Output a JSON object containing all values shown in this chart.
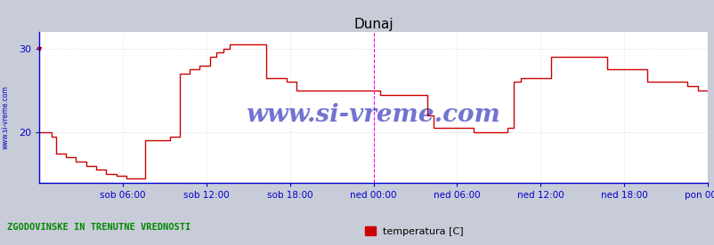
{
  "title": "Dunaj",
  "bg_color": "#c8ccd8",
  "plot_bg_color": "#ffffff",
  "grid_color_h": "#d0d0e0",
  "grid_color_v": "#ffcccc",
  "line_color": "#cc0000",
  "axis_color": "#0000cc",
  "text_color": "#0000cc",
  "watermark": "www.si-vreme.com",
  "watermark_color": "#0000aa",
  "legend_label": "temperatura [C]",
  "legend_color": "#cc0000",
  "bottom_label": "ZGODOVINSKE IN TRENUTNE VREDNOSTI",
  "ylim_min": 14.0,
  "ylim_max": 32.0,
  "yticks": [
    20,
    30
  ],
  "xticklabels": [
    "sob 06:00",
    "sob 12:00",
    "sob 18:00",
    "ned 00:00",
    "ned 06:00",
    "ned 12:00",
    "ned 18:00",
    "pon 00:00"
  ],
  "xtick_positions": [
    0.125,
    0.25,
    0.375,
    0.5,
    0.625,
    0.75,
    0.875,
    1.0
  ],
  "magenta_vlines": [
    0.5,
    1.0
  ],
  "temp_data": [
    [
      0.0,
      20.0
    ],
    [
      0.01,
      20.0
    ],
    [
      0.018,
      19.5
    ],
    [
      0.025,
      17.5
    ],
    [
      0.04,
      17.0
    ],
    [
      0.055,
      16.5
    ],
    [
      0.07,
      16.0
    ],
    [
      0.085,
      15.5
    ],
    [
      0.1,
      15.0
    ],
    [
      0.115,
      14.8
    ],
    [
      0.13,
      14.5
    ],
    [
      0.145,
      14.5
    ],
    [
      0.158,
      19.0
    ],
    [
      0.175,
      19.0
    ],
    [
      0.195,
      19.5
    ],
    [
      0.21,
      27.0
    ],
    [
      0.225,
      27.5
    ],
    [
      0.24,
      28.0
    ],
    [
      0.255,
      29.0
    ],
    [
      0.265,
      29.5
    ],
    [
      0.275,
      30.0
    ],
    [
      0.285,
      30.5
    ],
    [
      0.3,
      30.5
    ],
    [
      0.315,
      30.5
    ],
    [
      0.33,
      30.5
    ],
    [
      0.34,
      26.5
    ],
    [
      0.355,
      26.5
    ],
    [
      0.37,
      26.0
    ],
    [
      0.385,
      25.0
    ],
    [
      0.4,
      25.0
    ],
    [
      0.415,
      25.0
    ],
    [
      0.43,
      25.0
    ],
    [
      0.445,
      25.0
    ],
    [
      0.46,
      25.0
    ],
    [
      0.475,
      25.0
    ],
    [
      0.49,
      25.0
    ],
    [
      0.5,
      25.0
    ],
    [
      0.51,
      24.5
    ],
    [
      0.525,
      24.5
    ],
    [
      0.54,
      24.5
    ],
    [
      0.555,
      24.5
    ],
    [
      0.57,
      24.5
    ],
    [
      0.58,
      22.0
    ],
    [
      0.59,
      20.5
    ],
    [
      0.605,
      20.5
    ],
    [
      0.62,
      20.5
    ],
    [
      0.635,
      20.5
    ],
    [
      0.65,
      20.0
    ],
    [
      0.665,
      20.0
    ],
    [
      0.68,
      20.0
    ],
    [
      0.7,
      20.5
    ],
    [
      0.71,
      26.0
    ],
    [
      0.72,
      26.5
    ],
    [
      0.735,
      26.5
    ],
    [
      0.75,
      26.5
    ],
    [
      0.765,
      29.0
    ],
    [
      0.78,
      29.0
    ],
    [
      0.795,
      29.0
    ],
    [
      0.81,
      29.0
    ],
    [
      0.825,
      29.0
    ],
    [
      0.84,
      29.0
    ],
    [
      0.85,
      27.5
    ],
    [
      0.865,
      27.5
    ],
    [
      0.88,
      27.5
    ],
    [
      0.895,
      27.5
    ],
    [
      0.91,
      26.0
    ],
    [
      0.925,
      26.0
    ],
    [
      0.94,
      26.0
    ],
    [
      0.955,
      26.0
    ],
    [
      0.97,
      25.5
    ],
    [
      0.985,
      25.0
    ],
    [
      1.0,
      25.0
    ]
  ]
}
